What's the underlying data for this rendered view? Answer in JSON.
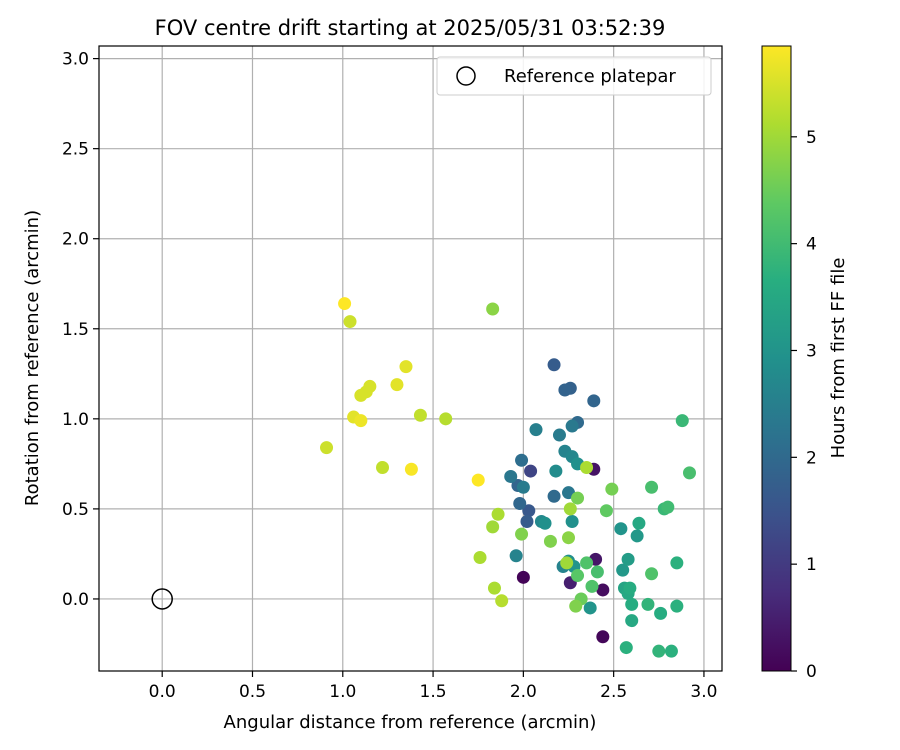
{
  "chart_data": {
    "type": "scatter",
    "title": "FOV centre drift starting at 2025/05/31 03:52:39",
    "xlabel": "Angular distance from reference (arcmin)",
    "ylabel": "Rotation from reference (arcmin)",
    "xlim": [
      -0.35,
      3.1
    ],
    "ylim": [
      -0.4,
      3.07
    ],
    "xticks": [
      0.0,
      0.5,
      1.0,
      1.5,
      2.0,
      2.5,
      3.0
    ],
    "xtick_labels": [
      "0.0",
      "0.5",
      "1.0",
      "1.5",
      "2.0",
      "2.5",
      "3.0"
    ],
    "yticks": [
      0.0,
      0.5,
      1.0,
      1.5,
      2.0,
      2.5,
      3.0
    ],
    "ytick_labels": [
      "0.0",
      "0.5",
      "1.0",
      "1.5",
      "2.0",
      "2.5",
      "3.0"
    ],
    "grid": true,
    "legend": {
      "position": "top-right",
      "entries": [
        "Reference platepar"
      ]
    },
    "reference_point": {
      "x": 0.0,
      "y": 0.0
    },
    "colorbar": {
      "label": "Hours from first FF file",
      "min": 0,
      "max": 5.85,
      "ticks": [
        0,
        1,
        2,
        3,
        4,
        5
      ],
      "tick_labels": [
        "0",
        "1",
        "2",
        "3",
        "4",
        "5"
      ],
      "colormap": "viridis"
    },
    "points": [
      {
        "x": 2.0,
        "y": 0.12,
        "c": 0.05
      },
      {
        "x": 2.44,
        "y": -0.21,
        "c": 0.1
      },
      {
        "x": 2.44,
        "y": 0.05,
        "c": 0.2
      },
      {
        "x": 2.39,
        "y": 0.72,
        "c": 0.3
      },
      {
        "x": 2.4,
        "y": 0.22,
        "c": 0.35
      },
      {
        "x": 2.26,
        "y": 0.09,
        "c": 0.5
      },
      {
        "x": 2.04,
        "y": 0.71,
        "c": 1.2
      },
      {
        "x": 2.17,
        "y": 1.3,
        "c": 1.7
      },
      {
        "x": 2.26,
        "y": 1.17,
        "c": 1.8
      },
      {
        "x": 2.23,
        "y": 1.16,
        "c": 1.85
      },
      {
        "x": 2.39,
        "y": 1.1,
        "c": 1.9
      },
      {
        "x": 2.3,
        "y": 0.98,
        "c": 2.0
      },
      {
        "x": 2.03,
        "y": 0.49,
        "c": 1.6
      },
      {
        "x": 1.97,
        "y": 0.63,
        "c": 1.9
      },
      {
        "x": 2.02,
        "y": 0.43,
        "c": 1.7
      },
      {
        "x": 1.98,
        "y": 0.53,
        "c": 1.95
      },
      {
        "x": 2.17,
        "y": 0.57,
        "c": 2.0
      },
      {
        "x": 1.99,
        "y": 0.77,
        "c": 2.1
      },
      {
        "x": 1.93,
        "y": 0.68,
        "c": 2.3
      },
      {
        "x": 2.0,
        "y": 0.62,
        "c": 2.4
      },
      {
        "x": 2.07,
        "y": 0.94,
        "c": 2.5
      },
      {
        "x": 2.2,
        "y": 0.91,
        "c": 2.4
      },
      {
        "x": 2.27,
        "y": 0.96,
        "c": 2.35
      },
      {
        "x": 2.25,
        "y": 0.59,
        "c": 2.3
      },
      {
        "x": 2.23,
        "y": 0.82,
        "c": 2.6
      },
      {
        "x": 2.27,
        "y": 0.79,
        "c": 2.7
      },
      {
        "x": 2.3,
        "y": 0.75,
        "c": 2.9
      },
      {
        "x": 2.18,
        "y": 0.71,
        "c": 2.8
      },
      {
        "x": 2.1,
        "y": 0.43,
        "c": 2.7
      },
      {
        "x": 2.12,
        "y": 0.42,
        "c": 2.9
      },
      {
        "x": 2.27,
        "y": 0.43,
        "c": 2.9
      },
      {
        "x": 1.96,
        "y": 0.24,
        "c": 2.6
      },
      {
        "x": 2.22,
        "y": 0.18,
        "c": 2.6
      },
      {
        "x": 2.25,
        "y": 0.21,
        "c": 2.9
      },
      {
        "x": 2.28,
        "y": 0.18,
        "c": 3.0
      },
      {
        "x": 2.37,
        "y": -0.05,
        "c": 3.0
      },
      {
        "x": 2.54,
        "y": 0.39,
        "c": 3.0
      },
      {
        "x": 2.55,
        "y": 0.16,
        "c": 3.1
      },
      {
        "x": 2.58,
        "y": 0.22,
        "c": 3.2
      },
      {
        "x": 2.63,
        "y": 0.35,
        "c": 3.1
      },
      {
        "x": 2.56,
        "y": 0.06,
        "c": 3.4
      },
      {
        "x": 2.58,
        "y": 0.03,
        "c": 3.5
      },
      {
        "x": 2.59,
        "y": 0.06,
        "c": 3.6
      },
      {
        "x": 2.6,
        "y": -0.03,
        "c": 3.6
      },
      {
        "x": 2.64,
        "y": 0.42,
        "c": 3.5
      },
      {
        "x": 2.6,
        "y": -0.12,
        "c": 3.5
      },
      {
        "x": 2.57,
        "y": -0.27,
        "c": 3.7
      },
      {
        "x": 2.69,
        "y": -0.03,
        "c": 3.8
      },
      {
        "x": 2.75,
        "y": -0.29,
        "c": 3.8
      },
      {
        "x": 2.82,
        "y": -0.29,
        "c": 3.7
      },
      {
        "x": 2.76,
        "y": -0.08,
        "c": 3.6
      },
      {
        "x": 2.85,
        "y": -0.04,
        "c": 3.7
      },
      {
        "x": 2.85,
        "y": 0.2,
        "c": 3.7
      },
      {
        "x": 2.78,
        "y": 0.5,
        "c": 3.9
      },
      {
        "x": 2.8,
        "y": 0.51,
        "c": 4.0
      },
      {
        "x": 2.88,
        "y": 0.99,
        "c": 3.9
      },
      {
        "x": 2.92,
        "y": 0.7,
        "c": 4.1
      },
      {
        "x": 2.71,
        "y": 0.62,
        "c": 4.1
      },
      {
        "x": 2.71,
        "y": 0.14,
        "c": 4.2
      },
      {
        "x": 2.41,
        "y": 0.15,
        "c": 4.1
      },
      {
        "x": 2.35,
        "y": 0.2,
        "c": 4.2
      },
      {
        "x": 2.38,
        "y": 0.07,
        "c": 4.2
      },
      {
        "x": 2.3,
        "y": 0.13,
        "c": 4.3
      },
      {
        "x": 2.32,
        "y": 0.0,
        "c": 4.5
      },
      {
        "x": 2.29,
        "y": -0.04,
        "c": 4.7
      },
      {
        "x": 2.46,
        "y": 0.49,
        "c": 4.4
      },
      {
        "x": 2.49,
        "y": 0.61,
        "c": 4.6
      },
      {
        "x": 2.3,
        "y": 0.56,
        "c": 4.6
      },
      {
        "x": 2.15,
        "y": 0.32,
        "c": 4.7
      },
      {
        "x": 1.99,
        "y": 0.36,
        "c": 4.7
      },
      {
        "x": 2.25,
        "y": 0.34,
        "c": 4.8
      },
      {
        "x": 2.26,
        "y": 0.5,
        "c": 5.0
      },
      {
        "x": 2.35,
        "y": 0.73,
        "c": 5.1
      },
      {
        "x": 2.24,
        "y": 0.2,
        "c": 5.0
      },
      {
        "x": 1.83,
        "y": 1.61,
        "c": 4.8
      },
      {
        "x": 1.83,
        "y": 0.4,
        "c": 5.0
      },
      {
        "x": 1.86,
        "y": 0.47,
        "c": 5.1
      },
      {
        "x": 1.76,
        "y": 0.23,
        "c": 5.1
      },
      {
        "x": 1.84,
        "y": 0.06,
        "c": 5.1
      },
      {
        "x": 1.88,
        "y": -0.01,
        "c": 5.2
      },
      {
        "x": 1.57,
        "y": 1.0,
        "c": 5.2
      },
      {
        "x": 1.43,
        "y": 1.02,
        "c": 5.3
      },
      {
        "x": 1.22,
        "y": 0.73,
        "c": 5.3
      },
      {
        "x": 0.91,
        "y": 0.84,
        "c": 5.4
      },
      {
        "x": 1.04,
        "y": 1.54,
        "c": 5.4
      },
      {
        "x": 1.1,
        "y": 1.13,
        "c": 5.5
      },
      {
        "x": 1.13,
        "y": 1.15,
        "c": 5.5
      },
      {
        "x": 1.15,
        "y": 1.18,
        "c": 5.5
      },
      {
        "x": 1.3,
        "y": 1.19,
        "c": 5.6
      },
      {
        "x": 1.35,
        "y": 1.29,
        "c": 5.6
      },
      {
        "x": 1.06,
        "y": 1.01,
        "c": 5.6
      },
      {
        "x": 1.1,
        "y": 0.99,
        "c": 5.7
      },
      {
        "x": 1.38,
        "y": 0.72,
        "c": 5.8
      },
      {
        "x": 1.75,
        "y": 0.66,
        "c": 5.85
      },
      {
        "x": 1.01,
        "y": 1.64,
        "c": 5.85
      }
    ]
  }
}
